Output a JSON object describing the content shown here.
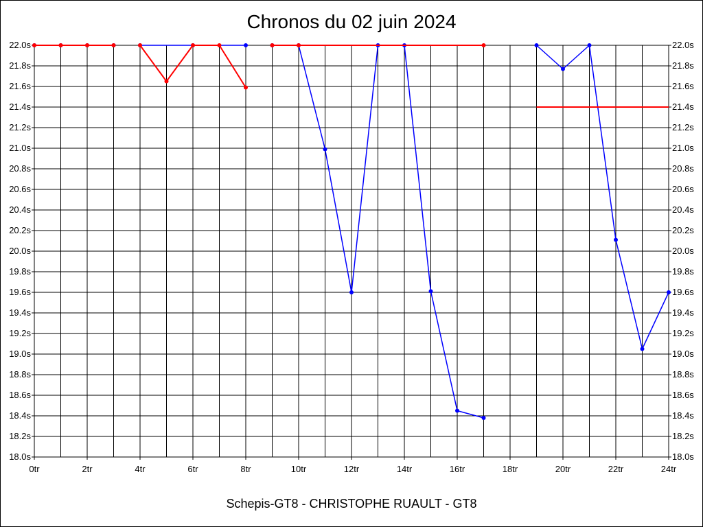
{
  "chart_data": {
    "type": "line",
    "title": "Chronos du 02 juin 2024",
    "footer": "Schepis-GT8 - CHRISTOPHE RUAULT - GT8",
    "xlabel": "",
    "ylabel": "",
    "xlim": [
      0,
      24
    ],
    "ylim": [
      18.0,
      22.0
    ],
    "grid": true,
    "legend": "none",
    "x_tick_labels": [
      "0tr",
      "2tr",
      "4tr",
      "6tr",
      "8tr",
      "10tr",
      "12tr",
      "14tr",
      "16tr",
      "18tr",
      "20tr",
      "22tr",
      "24tr"
    ],
    "y_tick_labels": [
      "18.0s",
      "18.2s",
      "18.4s",
      "18.6s",
      "18.8s",
      "19.0s",
      "19.2s",
      "19.4s",
      "19.6s",
      "19.8s",
      "20.0s",
      "20.2s",
      "20.4s",
      "20.6s",
      "20.8s",
      "21.0s",
      "21.2s",
      "21.4s",
      "21.6s",
      "21.8s",
      "22.0s"
    ],
    "series": [
      {
        "color": "#0000ff",
        "markers": true,
        "segments": [
          [
            [
              0,
              22.0
            ],
            [
              1,
              22.0
            ],
            [
              2,
              22.0
            ],
            [
              3,
              22.0
            ]
          ],
          [
            [
              4,
              22.0
            ],
            [
              6,
              22.0
            ],
            [
              8,
              22.0
            ]
          ],
          [
            [
              9,
              22.0
            ],
            [
              10,
              22.0
            ],
            [
              11,
              20.99
            ],
            [
              12,
              19.6
            ],
            [
              13,
              22.0
            ],
            [
              14,
              22.0
            ],
            [
              15,
              19.61
            ],
            [
              16,
              18.45
            ],
            [
              17,
              18.38
            ]
          ],
          [
            [
              19,
              22.0
            ],
            [
              20,
              21.77
            ],
            [
              21,
              22.0
            ],
            [
              22,
              20.11
            ],
            [
              23,
              19.05
            ],
            [
              24,
              19.6
            ]
          ]
        ]
      },
      {
        "color": "#ff0000",
        "markers": true,
        "segments": [
          [
            [
              0,
              22.0
            ],
            [
              1,
              22.0
            ],
            [
              2,
              22.0
            ],
            [
              3,
              22.0
            ]
          ],
          [
            [
              4,
              22.0
            ],
            [
              5,
              21.65
            ],
            [
              6,
              22.0
            ],
            [
              7,
              22.0
            ],
            [
              8,
              21.59
            ]
          ],
          [
            [
              9,
              22.0
            ],
            [
              10,
              22.0
            ],
            [
              17,
              22.0
            ]
          ],
          [
            [
              19,
              21.4
            ],
            [
              24,
              21.4
            ]
          ]
        ]
      }
    ]
  }
}
